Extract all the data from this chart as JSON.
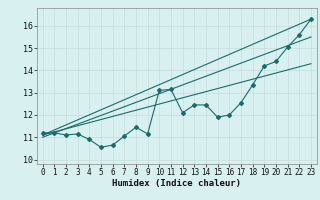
{
  "title": "",
  "xlabel": "Humidex (Indice chaleur)",
  "ylabel": "",
  "bg_color": "#d8f0f0",
  "grid_color": "#c8dcdc",
  "line_color": "#1a6b6b",
  "xlim": [
    -0.5,
    23.5
  ],
  "ylim": [
    9.8,
    16.8
  ],
  "xticks": [
    0,
    1,
    2,
    3,
    4,
    5,
    6,
    7,
    8,
    9,
    10,
    11,
    12,
    13,
    14,
    15,
    16,
    17,
    18,
    19,
    20,
    21,
    22,
    23
  ],
  "yticks": [
    10,
    11,
    12,
    13,
    14,
    15,
    16
  ],
  "data_x": [
    0,
    1,
    2,
    3,
    4,
    5,
    6,
    7,
    8,
    9,
    10,
    11,
    12,
    13,
    14,
    15,
    16,
    17,
    18,
    19,
    20,
    21,
    22,
    23
  ],
  "data_y": [
    11.2,
    11.2,
    11.1,
    11.15,
    10.9,
    10.55,
    10.65,
    11.05,
    11.45,
    11.15,
    13.1,
    13.15,
    12.1,
    12.45,
    12.45,
    11.9,
    12.0,
    12.55,
    13.35,
    14.2,
    14.4,
    15.05,
    15.6,
    16.3
  ],
  "line1_x": [
    0,
    23
  ],
  "line1_y": [
    11.1,
    16.3
  ],
  "line2_x": [
    0,
    23
  ],
  "line2_y": [
    11.1,
    14.3
  ],
  "line3_x": [
    0,
    23
  ],
  "line3_y": [
    11.0,
    15.5
  ]
}
